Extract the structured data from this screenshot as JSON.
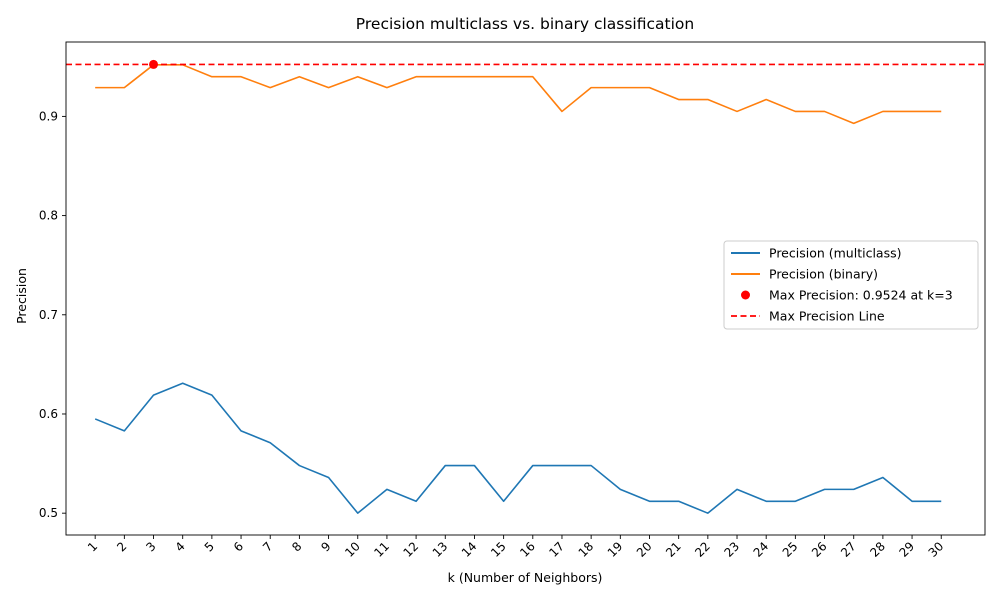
{
  "chart_data": {
    "type": "line",
    "title": "Precision multiclass vs. binary classification",
    "xlabel": "k (Number of Neighbors)",
    "ylabel": "Precision",
    "x": [
      1,
      2,
      3,
      4,
      5,
      6,
      7,
      8,
      9,
      10,
      11,
      12,
      13,
      14,
      15,
      16,
      17,
      18,
      19,
      20,
      21,
      22,
      23,
      24,
      25,
      26,
      27,
      28,
      29,
      30
    ],
    "xticks": [
      "1",
      "2",
      "3",
      "4",
      "5",
      "6",
      "7",
      "8",
      "9",
      "10",
      "11",
      "12",
      "13",
      "14",
      "15",
      "16",
      "17",
      "18",
      "19",
      "20",
      "21",
      "22",
      "23",
      "24",
      "25",
      "26",
      "27",
      "28",
      "29",
      "30"
    ],
    "xlim": [
      0,
      31.5
    ],
    "ylim": [
      0.478,
      0.975
    ],
    "yticks": [
      0.5,
      0.6,
      0.7,
      0.8,
      0.9
    ],
    "ytick_labels": [
      "0.5",
      "0.6",
      "0.7",
      "0.8",
      "0.9"
    ],
    "grid": false,
    "legend_position": "center-right",
    "series": [
      {
        "name": "Precision (multiclass)",
        "color": "#1f77b4",
        "values": [
          0.595,
          0.583,
          0.619,
          0.631,
          0.619,
          0.583,
          0.571,
          0.548,
          0.536,
          0.5,
          0.524,
          0.512,
          0.548,
          0.548,
          0.512,
          0.548,
          0.548,
          0.548,
          0.524,
          0.512,
          0.512,
          0.5,
          0.524,
          0.512,
          0.512,
          0.524,
          0.524,
          0.536,
          0.512,
          0.512
        ]
      },
      {
        "name": "Precision (binary)",
        "color": "#ff7f0e",
        "values": [
          0.929,
          0.929,
          0.952,
          0.952,
          0.94,
          0.94,
          0.929,
          0.94,
          0.929,
          0.94,
          0.929,
          0.94,
          0.94,
          0.94,
          0.94,
          0.94,
          0.905,
          0.929,
          0.929,
          0.929,
          0.917,
          0.917,
          0.905,
          0.917,
          0.905,
          0.905,
          0.893,
          0.905,
          0.905,
          0.905
        ]
      }
    ],
    "max_point": {
      "label": "Max Precision: 0.9524 at k=3",
      "x": 3,
      "y": 0.9524,
      "color": "#ff0000"
    },
    "max_line": {
      "label": "Max Precision Line",
      "y": 0.9524,
      "color": "#ff0000"
    }
  }
}
